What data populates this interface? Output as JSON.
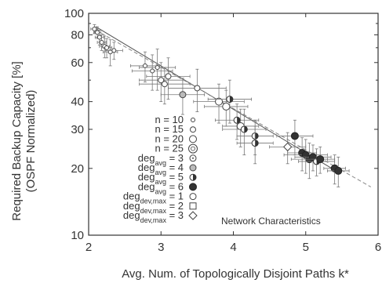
{
  "chart_data": {
    "type": "scatter",
    "xlabel": "Avg. Num. of Topologically Disjoint Paths k*",
    "ylabel_line1": "Required Backup Capacity [%]",
    "ylabel_line2": "(OSPF Normalized)",
    "xlim": [
      2,
      6
    ],
    "ylim": [
      10,
      100
    ],
    "y_scale": "log",
    "grid": false,
    "x_ticks": [
      2,
      3,
      4,
      5,
      6
    ],
    "y_ticks": [
      10,
      20,
      30,
      40,
      60,
      80,
      100
    ],
    "legend_title": "Network Characteristics",
    "legend_placement": "inside-bottom-center",
    "legend_entries": [
      {
        "base": "n = 10",
        "marker": "small-circle"
      },
      {
        "base": "n = 15",
        "marker": "medium-circle"
      },
      {
        "base": "n = 20",
        "marker": "large-circle"
      },
      {
        "base": "n = 25",
        "marker": "xlarge-circle"
      },
      {
        "base": "deg",
        "sub": "avg",
        "suffix": " = 3",
        "marker": "dotted-circle"
      },
      {
        "base": "deg",
        "sub": "avg",
        "suffix": " = 4",
        "marker": "light-shaded-circle"
      },
      {
        "base": "deg",
        "sub": "avg",
        "suffix": " = 5",
        "marker": "half-shaded-circle"
      },
      {
        "base": "deg",
        "sub": "avg",
        "suffix": " = 6",
        "marker": "filled-circle"
      },
      {
        "base": "deg",
        "sub": "dev,max",
        "suffix": " = 1",
        "marker": "circle"
      },
      {
        "base": "deg",
        "sub": "dev,max",
        "suffix": " = 2",
        "marker": "square"
      },
      {
        "base": "deg",
        "sub": "dev,max",
        "suffix": " = 3",
        "marker": "diamond"
      }
    ],
    "fit_lines": [
      {
        "style": "solid",
        "x": [
          2.1,
          5.45
        ],
        "y": [
          87,
          19.2
        ]
      },
      {
        "style": "dashed",
        "x": [
          2.1,
          5.9
        ],
        "y": [
          84,
          16.5
        ]
      }
    ],
    "points": [
      {
        "x": 2.08,
        "y": 85,
        "xerr": 0.05,
        "yerr": 4,
        "marker": "small-circle"
      },
      {
        "x": 2.12,
        "y": 82,
        "xerr": 0.05,
        "yerr": 5,
        "marker": "small-circle"
      },
      {
        "x": 2.15,
        "y": 78,
        "xerr": 0.06,
        "yerr": 6,
        "marker": "small-circle"
      },
      {
        "x": 2.18,
        "y": 74,
        "xerr": 0.06,
        "yerr": 6,
        "marker": "small-circle"
      },
      {
        "x": 2.22,
        "y": 71,
        "xerr": 0.07,
        "yerr": 8,
        "marker": "small-circle"
      },
      {
        "x": 2.25,
        "y": 70,
        "xerr": 0.07,
        "yerr": 7,
        "marker": "small-circle"
      },
      {
        "x": 2.3,
        "y": 67,
        "xerr": 0.1,
        "yerr": 9,
        "marker": "small-circle"
      },
      {
        "x": 2.35,
        "y": 68,
        "xerr": 0.12,
        "yerr": 6,
        "marker": "small-circle"
      },
      {
        "x": 2.78,
        "y": 58,
        "xerr": 0.2,
        "yerr": 9,
        "marker": "small-circle"
      },
      {
        "x": 2.88,
        "y": 55,
        "xerr": 0.28,
        "yerr": 10,
        "marker": "small-circle"
      },
      {
        "x": 2.95,
        "y": 57,
        "xerr": 0.25,
        "yerr": 12,
        "marker": "small-circle"
      },
      {
        "x": 3.0,
        "y": 50,
        "xerr": 0.3,
        "yerr": 10,
        "marker": "medium-circle"
      },
      {
        "x": 3.05,
        "y": 48,
        "xerr": 0.35,
        "yerr": 9,
        "marker": "medium-circle"
      },
      {
        "x": 3.1,
        "y": 52,
        "xerr": 0.3,
        "yerr": 11,
        "marker": "medium-circle"
      },
      {
        "x": 3.3,
        "y": 43,
        "xerr": 0.3,
        "yerr": 8,
        "marker": "light-shaded-circle"
      },
      {
        "x": 3.5,
        "y": 46,
        "xerr": 0.4,
        "yerr": 10,
        "marker": "medium-circle"
      },
      {
        "x": 3.8,
        "y": 40,
        "xerr": 0.35,
        "yerr": 8,
        "marker": "large-circle"
      },
      {
        "x": 3.9,
        "y": 38,
        "xerr": 0.3,
        "yerr": 7,
        "marker": "large-circle"
      },
      {
        "x": 3.95,
        "y": 41,
        "xerr": 0.3,
        "yerr": 9,
        "marker": "half-shaded-circle"
      },
      {
        "x": 4.05,
        "y": 33,
        "xerr": 0.3,
        "yerr": 6,
        "marker": "half-shaded-circle"
      },
      {
        "x": 4.1,
        "y": 31,
        "xerr": 0.25,
        "yerr": 6,
        "marker": "large-circle"
      },
      {
        "x": 4.15,
        "y": 30,
        "xerr": 0.3,
        "yerr": 7,
        "marker": "half-shaded-circle"
      },
      {
        "x": 4.3,
        "y": 28,
        "xerr": 0.25,
        "yerr": 5,
        "marker": "half-shaded-circle"
      },
      {
        "x": 4.3,
        "y": 26,
        "xerr": 0.25,
        "yerr": 5,
        "marker": "half-shaded-circle"
      },
      {
        "x": 4.85,
        "y": 28,
        "xerr": 0.25,
        "yerr": 5,
        "marker": "filled-circle"
      },
      {
        "x": 4.75,
        "y": 25,
        "xerr": 0.25,
        "yerr": 4,
        "marker": "diamond"
      },
      {
        "x": 4.95,
        "y": 23.5,
        "xerr": 0.2,
        "yerr": 4,
        "marker": "filled-circle"
      },
      {
        "x": 5.0,
        "y": 23,
        "xerr": 0.3,
        "yerr": 4,
        "marker": "filled-circle"
      },
      {
        "x": 5.05,
        "y": 22,
        "xerr": 0.25,
        "yerr": 4,
        "marker": "filled-circle"
      },
      {
        "x": 5.1,
        "y": 22.5,
        "xerr": 0.25,
        "yerr": 3,
        "marker": "filled-circle"
      },
      {
        "x": 5.15,
        "y": 21.5,
        "xerr": 0.25,
        "yerr": 3,
        "marker": "half-shaded-circle"
      },
      {
        "x": 5.2,
        "y": 22,
        "xerr": 0.2,
        "yerr": 3,
        "marker": "filled-circle"
      },
      {
        "x": 5.4,
        "y": 20,
        "xerr": 0.15,
        "yerr": 3,
        "marker": "filled-circle"
      },
      {
        "x": 5.45,
        "y": 19.5,
        "xerr": 0.15,
        "yerr": 3,
        "marker": "filled-circle"
      }
    ]
  }
}
